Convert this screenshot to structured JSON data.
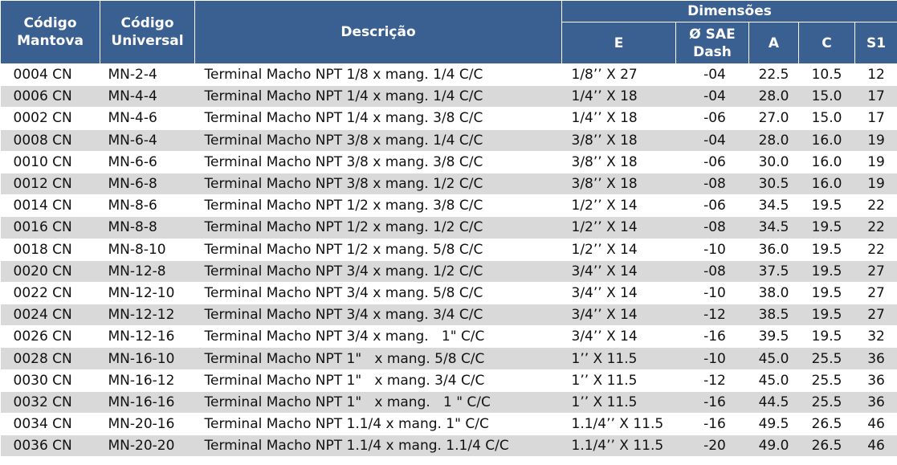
{
  "header": {
    "codigo_mantova": "Código\nMantova",
    "codigo_universal": "Código\nUniversal",
    "descricao": "Descrição",
    "dimensoes": "Dimensões",
    "e": "E",
    "sae_dash": "Ø SAE\nDash",
    "a": "A",
    "c": "C",
    "s1": "S1"
  },
  "rows": [
    {
      "mantova": "0004 CN",
      "universal": "MN-2-4",
      "descricao": "Terminal Macho NPT 1/8 x mang. 1/4 C/C",
      "e": "1/8’’ X 27",
      "dash": "-04",
      "a": "22.5",
      "c": "10.5",
      "s1": "12"
    },
    {
      "mantova": "0006 CN",
      "universal": "MN-4-4",
      "descricao": "Terminal Macho NPT 1/4 x mang. 1/4 C/C",
      "e": "1/4’’ X 18",
      "dash": "-04",
      "a": "28.0",
      "c": "15.0",
      "s1": "17"
    },
    {
      "mantova": "0002 CN",
      "universal": "MN-4-6",
      "descricao": "Terminal Macho NPT 1/4 x mang. 3/8 C/C",
      "e": "1/4’’ X 18",
      "dash": "-06",
      "a": "27.0",
      "c": "15.0",
      "s1": "17"
    },
    {
      "mantova": "0008 CN",
      "universal": "MN-6-4",
      "descricao": "Terminal Macho NPT 3/8 x mang. 1/4 C/C",
      "e": "3/8’’ X 18",
      "dash": "-04",
      "a": "28.0",
      "c": "16.0",
      "s1": "19"
    },
    {
      "mantova": "0010 CN",
      "universal": "MN-6-6",
      "descricao": "Terminal Macho NPT 3/8 x mang. 3/8 C/C",
      "e": "3/8’’ X 18",
      "dash": "-06",
      "a": "30.0",
      "c": "16.0",
      "s1": "19"
    },
    {
      "mantova": "0012 CN",
      "universal": "MN-6-8",
      "descricao": "Terminal Macho NPT 3/8 x mang. 1/2 C/C",
      "e": "3/8’’ X 18",
      "dash": "-08",
      "a": "30.5",
      "c": "16.0",
      "s1": "19"
    },
    {
      "mantova": "0014 CN",
      "universal": "MN-8-6",
      "descricao": "Terminal Macho NPT 1/2 x mang. 3/8 C/C",
      "e": "1/2’’ X 14",
      "dash": "-06",
      "a": "34.5",
      "c": "19.5",
      "s1": "22"
    },
    {
      "mantova": "0016 CN",
      "universal": "MN-8-8",
      "descricao": "Terminal Macho NPT 1/2 x mang. 1/2 C/C",
      "e": "1/2’’ X 14",
      "dash": "-08",
      "a": "34.5",
      "c": "19.5",
      "s1": "22"
    },
    {
      "mantova": "0018 CN",
      "universal": "MN-8-10",
      "descricao": "Terminal Macho NPT 1/2 x mang. 5/8 C/C",
      "e": "1/2’’ X 14",
      "dash": "-10",
      "a": "36.0",
      "c": "19.5",
      "s1": "22"
    },
    {
      "mantova": "0020 CN",
      "universal": "MN-12-8",
      "descricao": "Terminal Macho NPT 3/4 x mang. 1/2 C/C",
      "e": "3/4’’ X 14",
      "dash": "-08",
      "a": "37.5",
      "c": "19.5",
      "s1": "27"
    },
    {
      "mantova": "0022 CN",
      "universal": "MN-12-10",
      "descricao": "Terminal Macho NPT 3/4 x mang. 5/8 C/C",
      "e": "3/4’’ X 14",
      "dash": "-10",
      "a": "38.0",
      "c": "19.5",
      "s1": "27"
    },
    {
      "mantova": "0024 CN",
      "universal": "MN-12-12",
      "descricao": "Terminal Macho NPT 3/4 x mang. 3/4 C/C",
      "e": "3/4’’ X 14",
      "dash": "-12",
      "a": "38.5",
      "c": "19.5",
      "s1": "27"
    },
    {
      "mantova": "0026 CN",
      "universal": "MN-12-16",
      "descricao": "Terminal Macho NPT 3/4 x mang.   1\" C/C",
      "e": "3/4’’ X 14",
      "dash": "-16",
      "a": "39.5",
      "c": "19.5",
      "s1": "32"
    },
    {
      "mantova": "0028 CN",
      "universal": "MN-16-10",
      "descricao": "Terminal Macho NPT 1\"   x mang. 5/8 C/C",
      "e": "1’’ X 11.5",
      "dash": "-10",
      "a": "45.0",
      "c": "25.5",
      "s1": "36"
    },
    {
      "mantova": "0030 CN",
      "universal": "MN-16-12",
      "descricao": "Terminal Macho NPT 1\"   x mang. 3/4 C/C",
      "e": "1’’ X 11.5",
      "dash": "-12",
      "a": "45.0",
      "c": "25.5",
      "s1": "36"
    },
    {
      "mantova": "0032 CN",
      "universal": "MN-16-16",
      "descricao": "Terminal Macho NPT 1\"   x mang.   1 \" C/C",
      "e": "1’’ X 11.5",
      "dash": "-16",
      "a": "44.5",
      "c": "25.5",
      "s1": "36"
    },
    {
      "mantova": "0034 CN",
      "universal": "MN-20-16",
      "descricao": "Terminal Macho NPT 1.1/4 x mang. 1\" C/C",
      "e": "1.1/4’’ X 11.5",
      "dash": "-16",
      "a": "49.5",
      "c": "26.5",
      "s1": "46"
    },
    {
      "mantova": "0036 CN",
      "universal": "MN-20-20",
      "descricao": "Terminal Macho NPT 1.1/4 x mang. 1.1/4 C/C",
      "e": "1.1/4’’ X 11.5",
      "dash": "-20",
      "a": "49.0",
      "c": "26.5",
      "s1": "46"
    }
  ]
}
